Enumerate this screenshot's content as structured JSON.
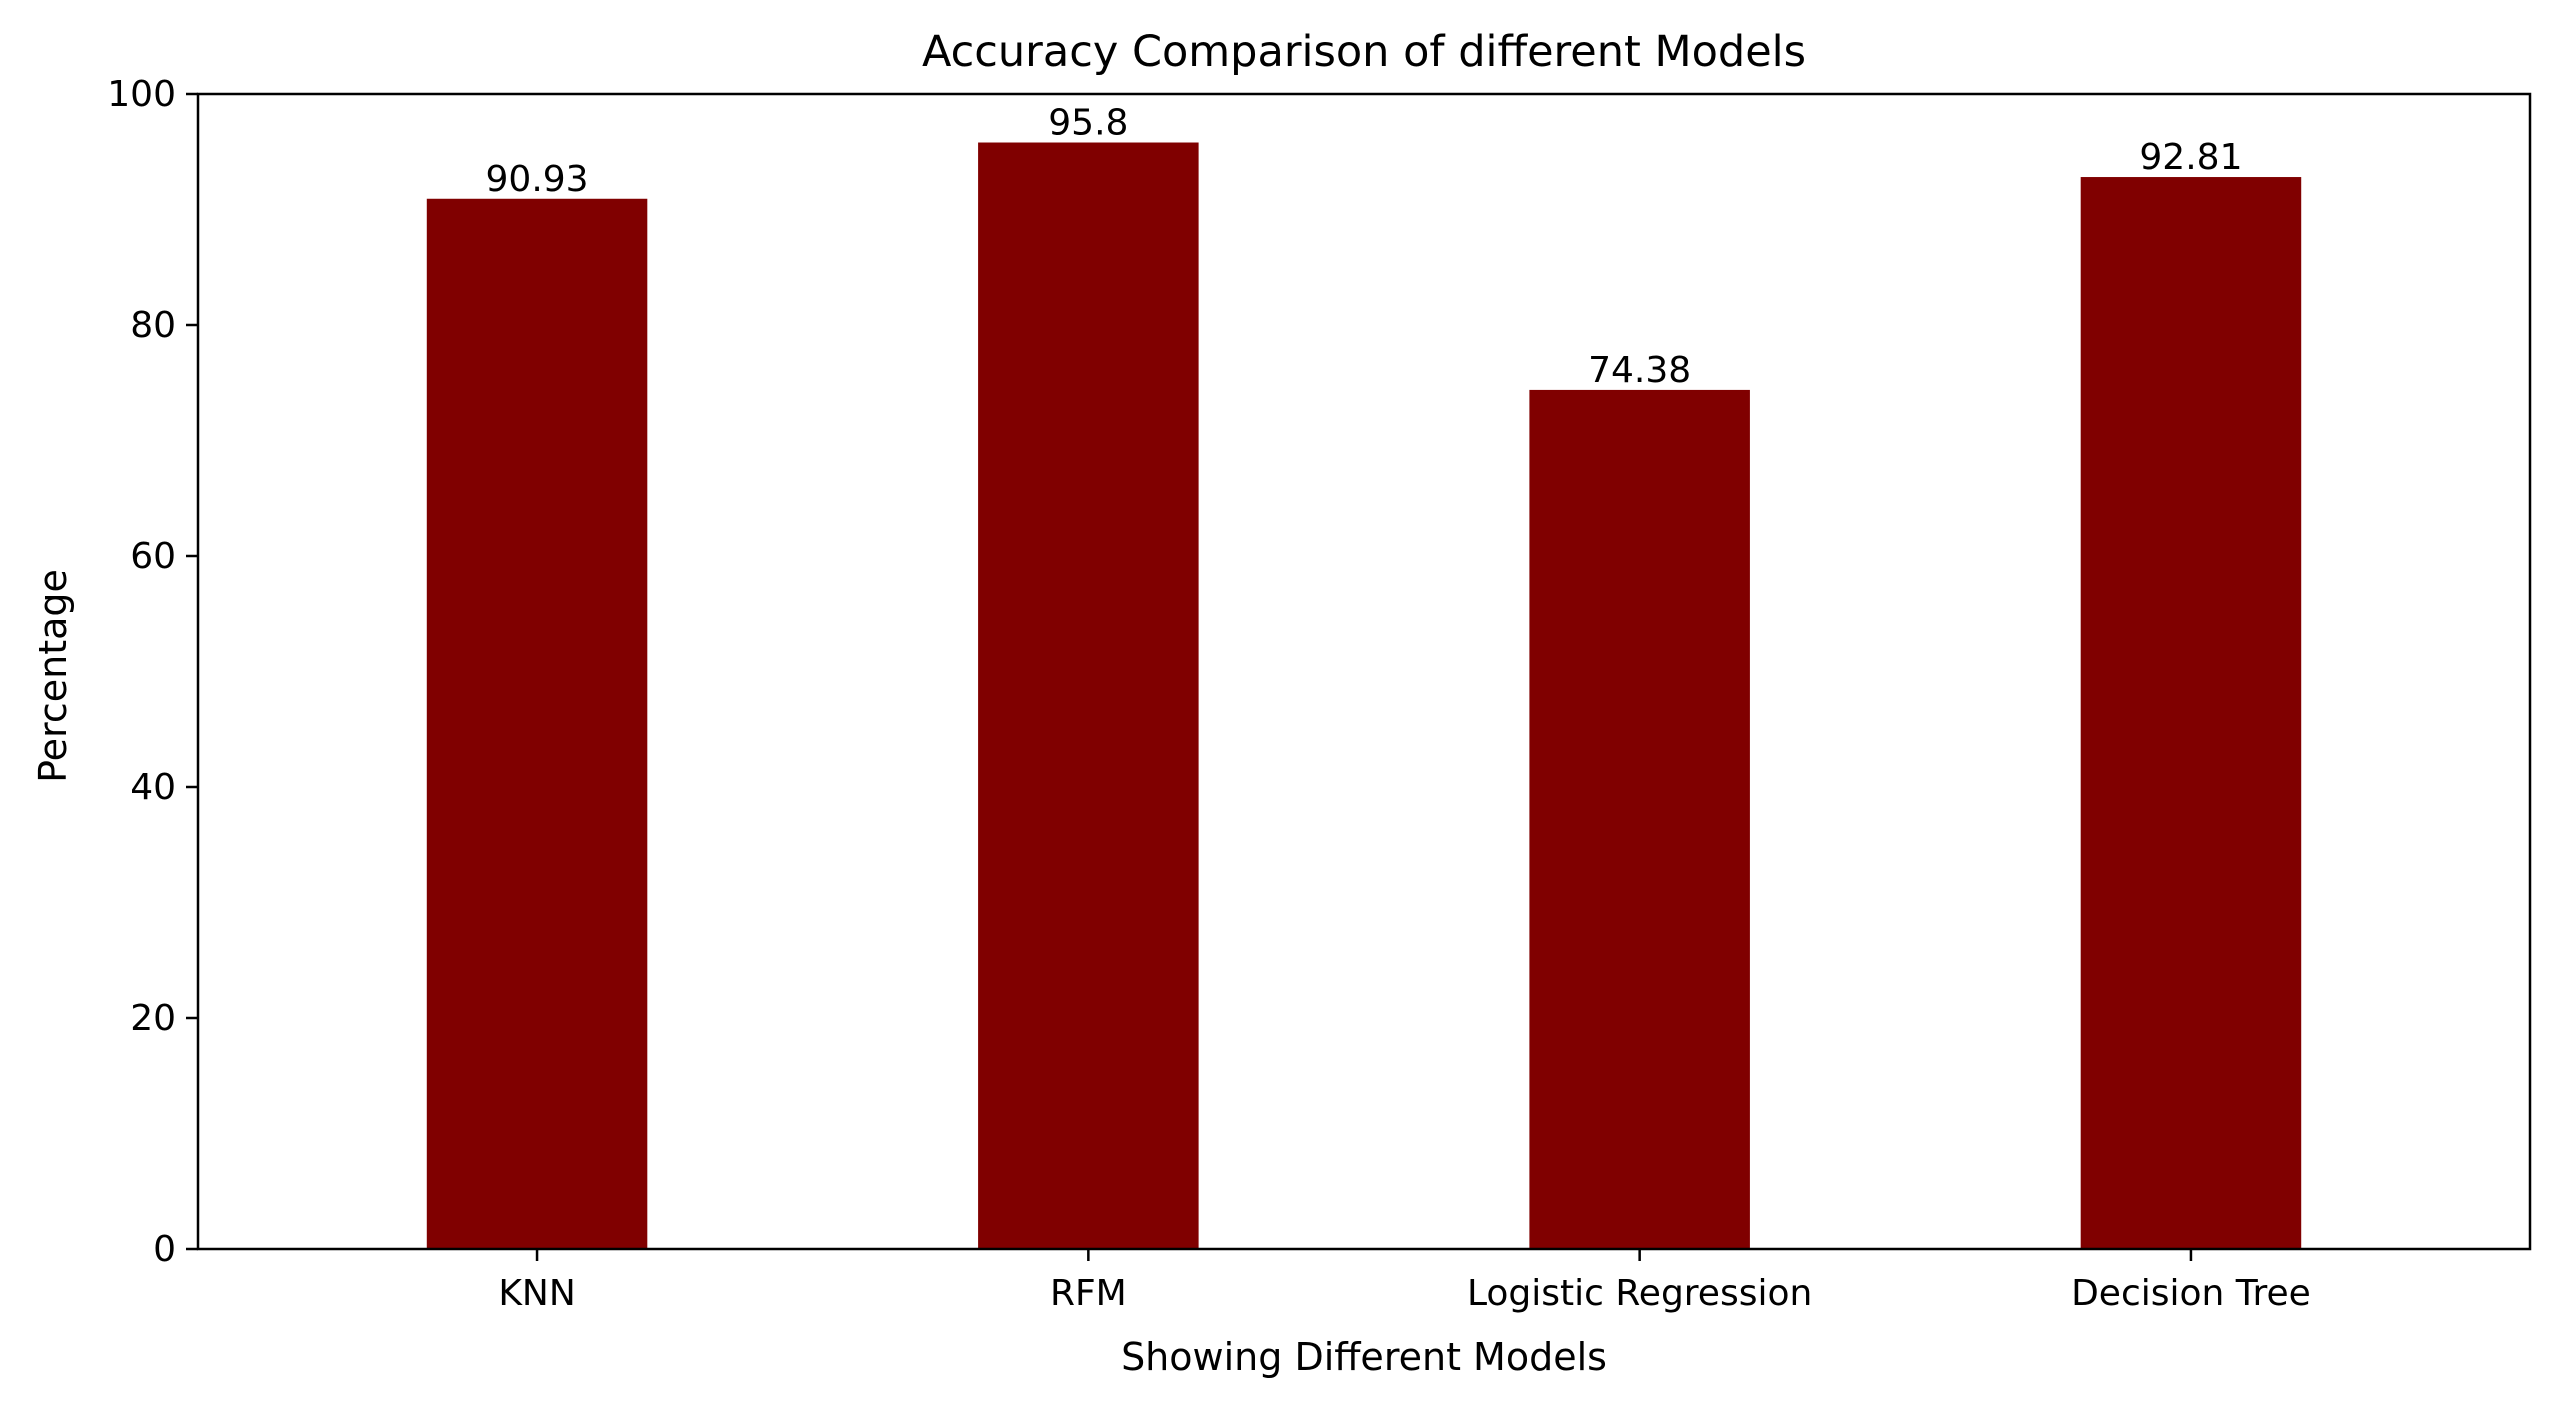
{
  "chart_data": {
    "type": "bar",
    "title": "Accuracy Comparison of different Models",
    "xlabel": "Showing Different Models",
    "ylabel": "Percentage",
    "categories": [
      "KNN",
      "RFM",
      "Logistic Regression",
      "Decision Tree"
    ],
    "values": [
      90.93,
      95.8,
      74.38,
      92.81
    ],
    "value_labels": [
      "90.93",
      "95.8",
      "74.38",
      "92.81"
    ],
    "ylim": [
      0,
      100
    ],
    "yticks": [
      0,
      20,
      40,
      60,
      80,
      100
    ],
    "ytick_labels": [
      "0",
      "20",
      "40",
      "60",
      "80",
      "100"
    ],
    "bar_color": "#800000",
    "grid": false,
    "legend": "none"
  }
}
